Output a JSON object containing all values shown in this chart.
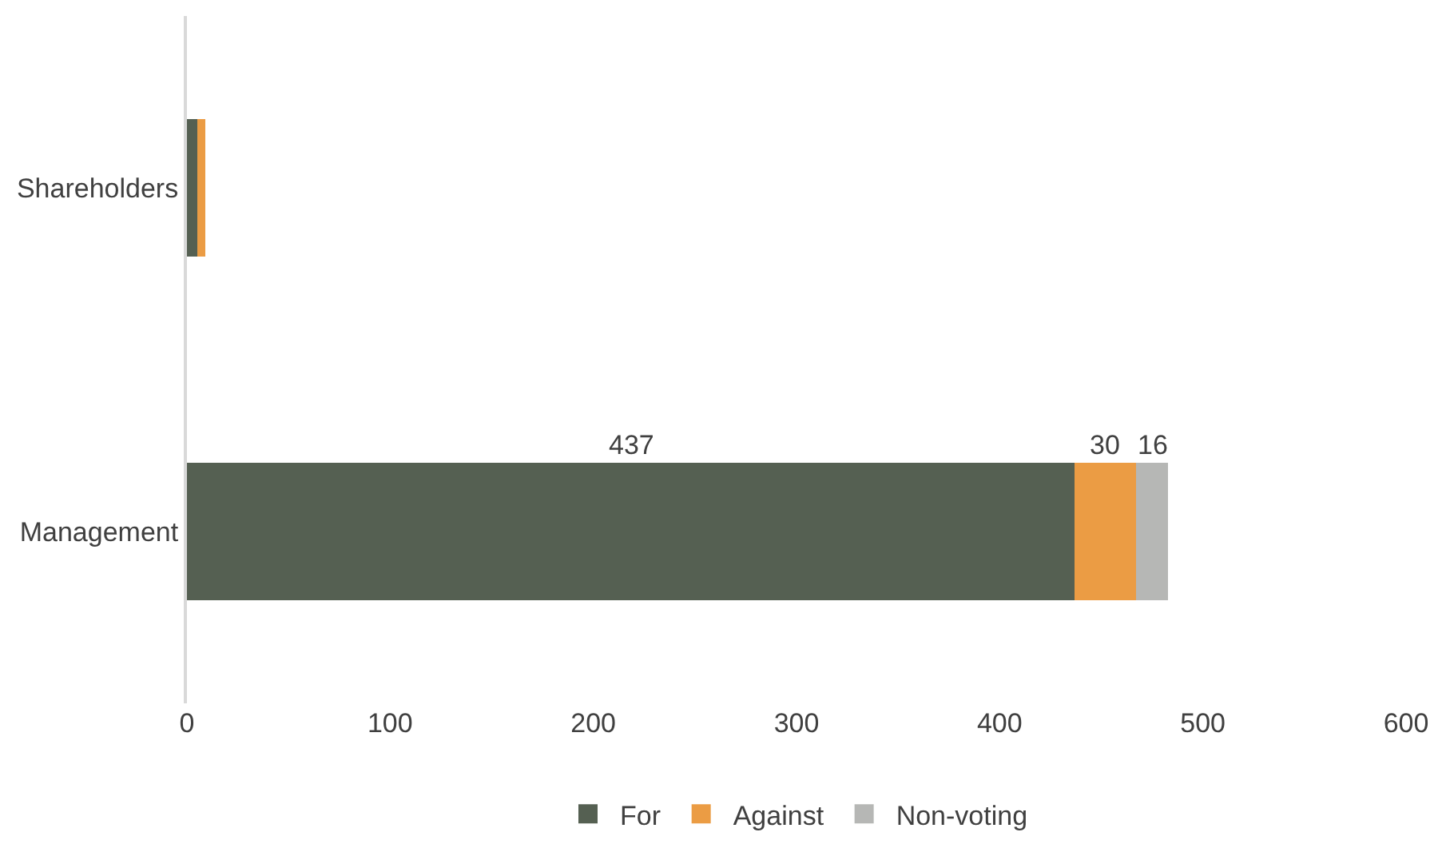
{
  "chart_data": {
    "type": "bar",
    "orientation": "horizontal",
    "stacked": true,
    "categories": [
      "Shareholders",
      "Management"
    ],
    "series": [
      {
        "name": "For",
        "color": "#556052",
        "values": [
          5,
          437
        ],
        "value_labels": [
          null,
          "437"
        ]
      },
      {
        "name": "Against",
        "color": "#eb9c44",
        "values": [
          4,
          30
        ],
        "value_labels": [
          null,
          "30"
        ]
      },
      {
        "name": "Non-voting",
        "color": "#b6b7b5",
        "values": [
          0,
          16
        ],
        "value_labels": [
          null,
          "16"
        ]
      }
    ],
    "xlim": [
      0,
      600
    ],
    "xticks": [
      0,
      100,
      200,
      300,
      400,
      500,
      600
    ],
    "grid": false,
    "legend": "bottom"
  }
}
